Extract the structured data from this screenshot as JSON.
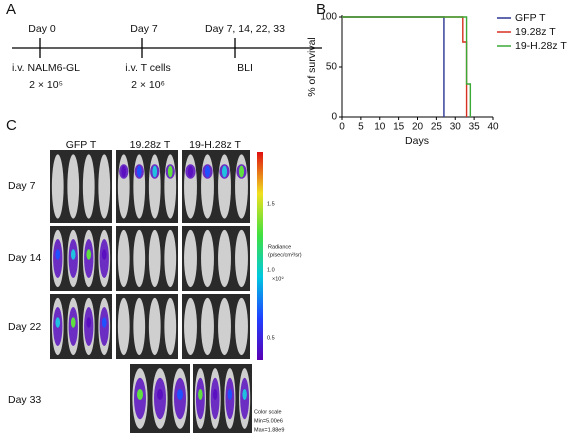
{
  "panel_a": {
    "label": "A",
    "timepoints": [
      {
        "day": "Day 0",
        "event": "i.v. NALM6-GL",
        "dose": "2 × 10⁵"
      },
      {
        "day": "Day 7",
        "event": "i.v. T cells",
        "dose": "2 × 10⁶"
      },
      {
        "day": "Day 7, 14, 22, 33",
        "event": "BLI"
      }
    ]
  },
  "chart_data": {
    "type": "line",
    "step": true,
    "panel_label": "B",
    "y_label": "% of survival",
    "x_label": "Days",
    "xlim": [
      0,
      40
    ],
    "xticks": [
      0,
      5,
      10,
      15,
      20,
      25,
      30,
      35,
      40
    ],
    "ylim": [
      0,
      100
    ],
    "yticks": [
      0,
      50,
      100
    ],
    "legend": "upper right",
    "series": [
      {
        "name": "GFP T",
        "color": "#2b3595",
        "x": [
          0,
          27
        ],
        "values": [
          100,
          0
        ]
      },
      {
        "name": "19.28z T",
        "color": "#d6311f",
        "x": [
          0,
          32,
          33
        ],
        "values": [
          100,
          75,
          0
        ]
      },
      {
        "name": "19-H.28z T",
        "color": "#3aa936",
        "x": [
          0,
          33,
          34
        ],
        "values": [
          100,
          33,
          0
        ]
      }
    ]
  },
  "panel_c": {
    "label": "C",
    "columns": [
      "GFP T",
      "19.28z T",
      "19-H.28z T"
    ],
    "rows": [
      "Day 7",
      "Day 14",
      "Day 22",
      "Day 33"
    ],
    "colorbar": {
      "ticks": [
        "1.5",
        "1.0",
        "0.5"
      ],
      "title": [
        "Radiance",
        "(p/sec/cm²/sr)"
      ],
      "unit": "×10⁹",
      "note": [
        "Color scale",
        "Min=5.00e6",
        "Max=1.88e9"
      ]
    }
  }
}
